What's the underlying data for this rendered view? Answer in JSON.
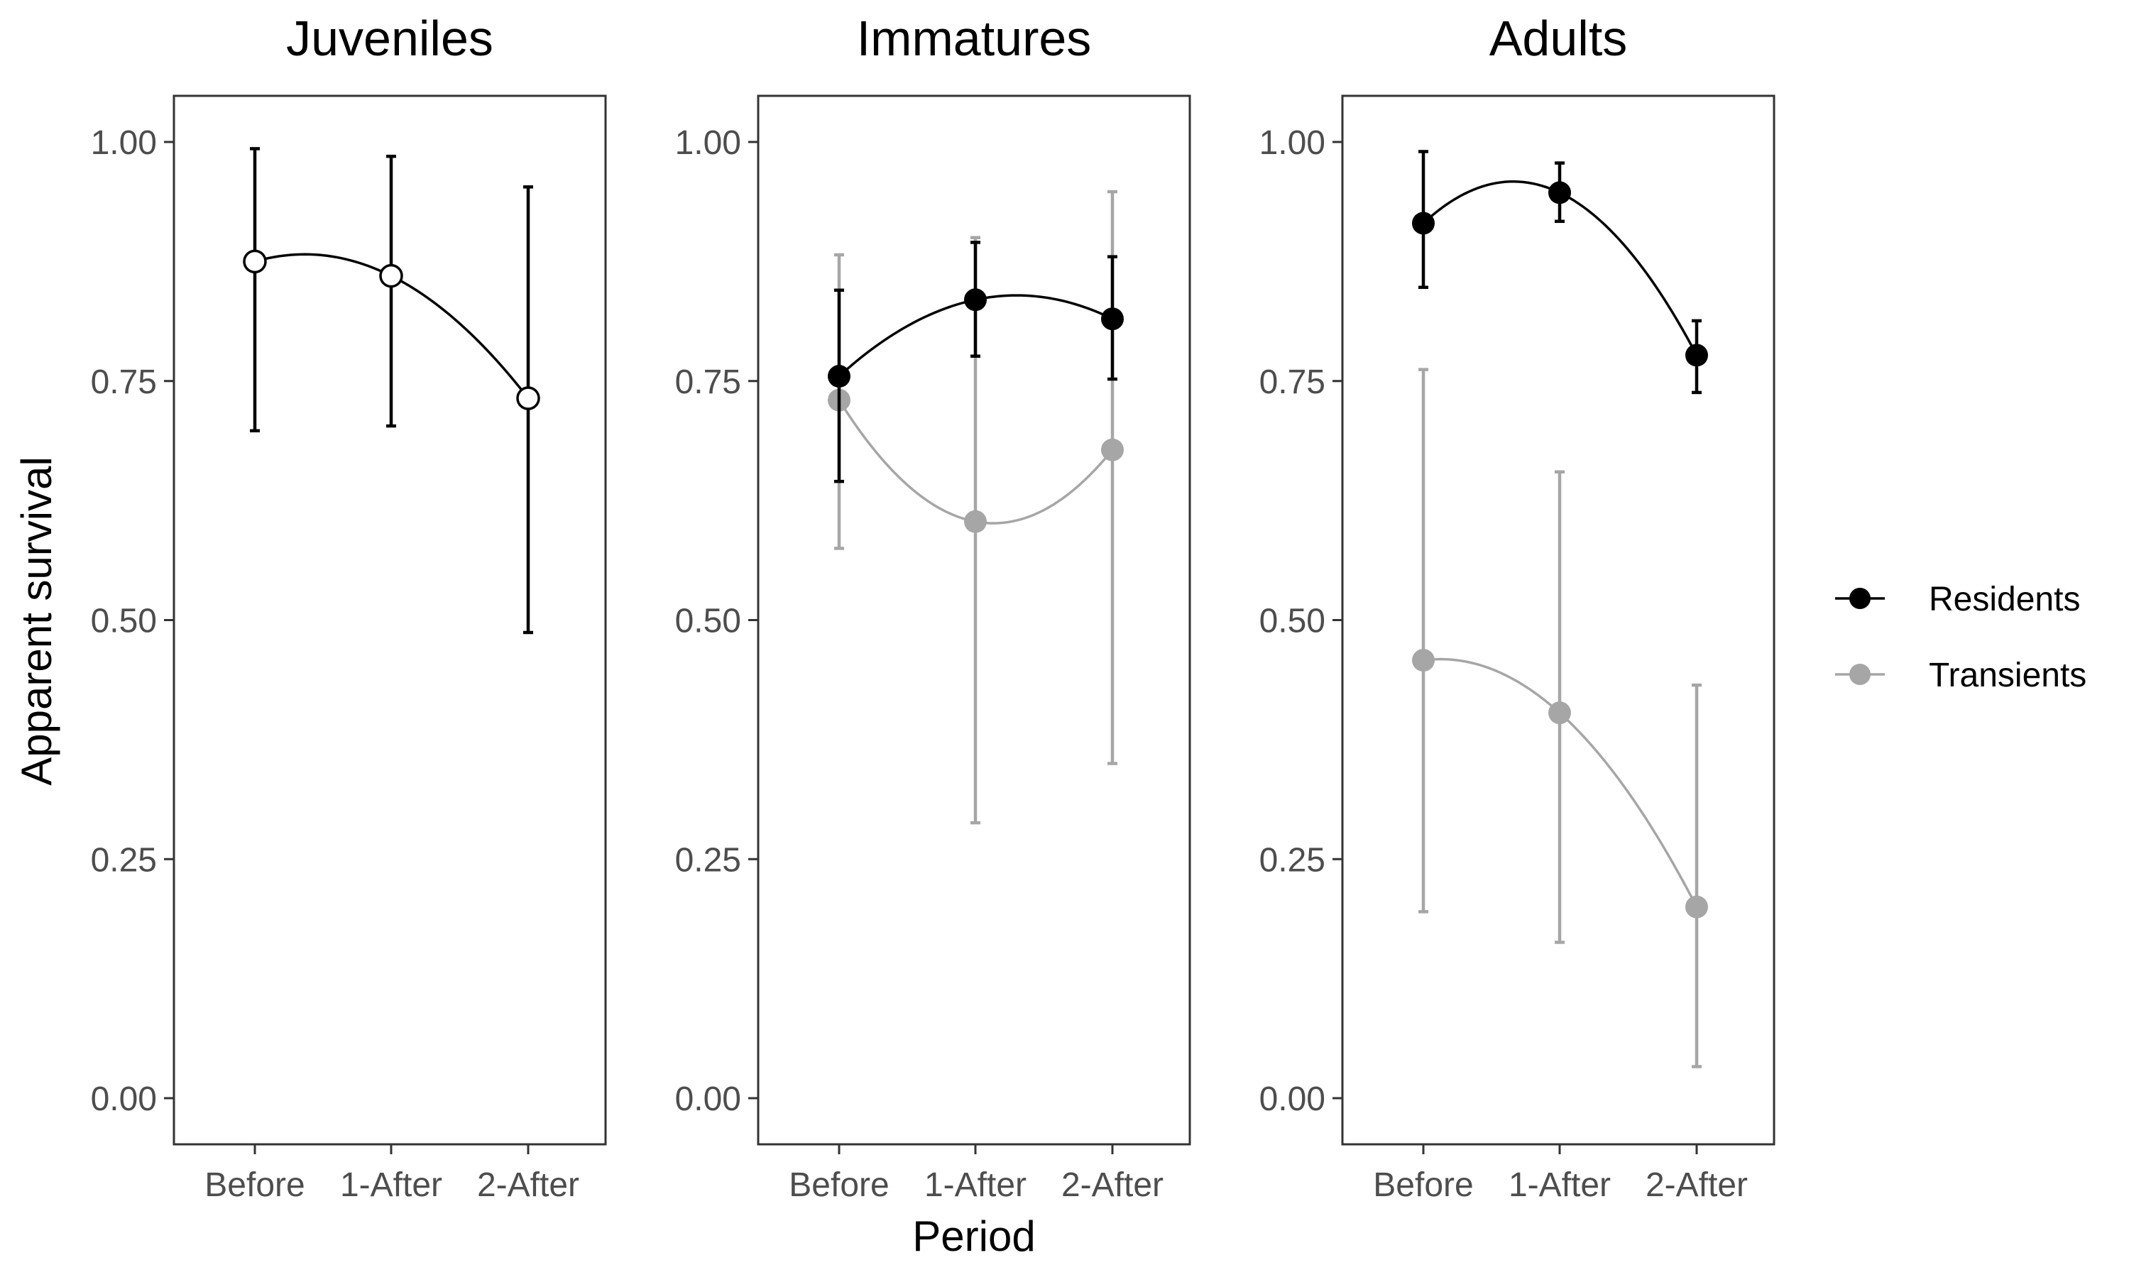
{
  "chart_data": {
    "type": "line",
    "ylabel": "Apparent survival",
    "xlabel": "Period",
    "categories": [
      "Before",
      "1-After",
      "2-After"
    ],
    "ylim": [
      0,
      1
    ],
    "yticks": [
      "0.00",
      "0.25",
      "0.50",
      "0.75",
      "1.00"
    ],
    "yticks_values": [
      0,
      0.25,
      0.5,
      0.75,
      1.0
    ],
    "colors": {
      "residents": "#000000",
      "transients": "#a6a6a6",
      "juvenile_fill": "#ffffff",
      "frame": "#333333",
      "tick_line": "#333333"
    },
    "legend": [
      {
        "name": "Residents",
        "color": "#000000"
      },
      {
        "name": "Transients",
        "color": "#a6a6a6"
      }
    ],
    "panels": [
      {
        "title": "Juveniles",
        "series": [
          {
            "name": "Juveniles",
            "style": "open",
            "values": [
              0.875,
              0.86,
              0.732
            ],
            "lower": [
              0.698,
              0.703,
              0.487
            ],
            "upper": [
              0.993,
              0.985,
              0.953
            ]
          }
        ]
      },
      {
        "title": "Immatures",
        "series": [
          {
            "name": "Transients",
            "style": "transients",
            "values": [
              0.73,
              0.603,
              0.678
            ],
            "lower": [
              0.575,
              0.288,
              0.35
            ],
            "upper": [
              0.882,
              0.9,
              0.948
            ]
          },
          {
            "name": "Residents",
            "style": "residents",
            "values": [
              0.755,
              0.835,
              0.815
            ],
            "lower": [
              0.645,
              0.776,
              0.752
            ],
            "upper": [
              0.845,
              0.895,
              0.88
            ]
          }
        ]
      },
      {
        "title": "Adults",
        "series": [
          {
            "name": "Transients",
            "style": "transients",
            "values": [
              0.458,
              0.403,
              0.2
            ],
            "lower": [
              0.195,
              0.163,
              0.033
            ],
            "upper": [
              0.762,
              0.655,
              0.432
            ]
          },
          {
            "name": "Residents",
            "style": "residents",
            "values": [
              0.915,
              0.947,
              0.777
            ],
            "lower": [
              0.848,
              0.917,
              0.738
            ],
            "upper": [
              0.99,
              0.978,
              0.813
            ]
          }
        ]
      }
    ]
  }
}
